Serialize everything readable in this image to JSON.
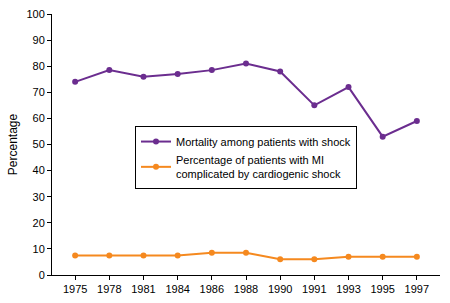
{
  "chart_data": {
    "type": "line",
    "y_label": "Percentage",
    "categories": [
      "1975",
      "1978",
      "1981",
      "1984",
      "1986",
      "1988",
      "1990",
      "1991",
      "1993",
      "1995",
      "1997"
    ],
    "series": [
      {
        "name": "Mortality among patients with shock",
        "color": "#6b2d8f",
        "marker": "circle",
        "line_style": "solid",
        "values": [
          74,
          78.5,
          76,
          77,
          78.5,
          81,
          78,
          65,
          72,
          53,
          59
        ]
      },
      {
        "name": "Percentage of patients with MI complicated by cardiogenic shock",
        "color": "#f5891f",
        "marker": "circle",
        "line_style": "solid",
        "values": [
          7.5,
          7.5,
          7.5,
          7.5,
          8.5,
          8.5,
          6,
          6,
          7,
          7,
          7
        ]
      }
    ],
    "ylim": [
      0,
      100
    ],
    "yticks": [
      0,
      10,
      20,
      30,
      40,
      50,
      60,
      70,
      80,
      90,
      100
    ],
    "grid": false,
    "legend": "center"
  }
}
